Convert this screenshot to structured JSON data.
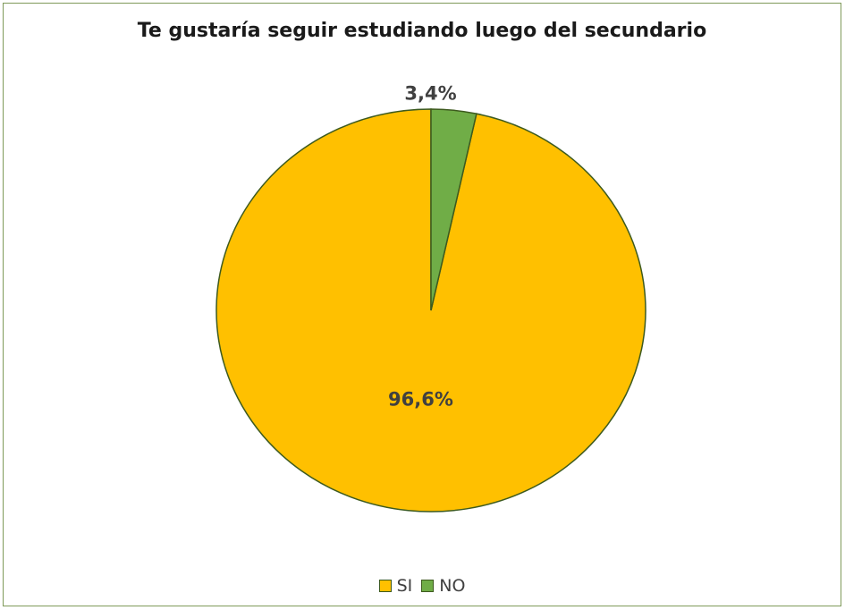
{
  "chart_data": {
    "type": "pie",
    "title": "Te gustaría seguir estudiando luego del secundario",
    "categories": [
      "SI",
      "NO"
    ],
    "values": [
      96.6,
      3.4
    ],
    "data_labels": [
      "96,6%",
      "3,4%"
    ],
    "colors": [
      "#ffc000",
      "#70ad47"
    ],
    "edge_color": "#3d5a1e",
    "start_angle_deg": 0,
    "direction": "counterclockwise",
    "legend": "bottom"
  }
}
